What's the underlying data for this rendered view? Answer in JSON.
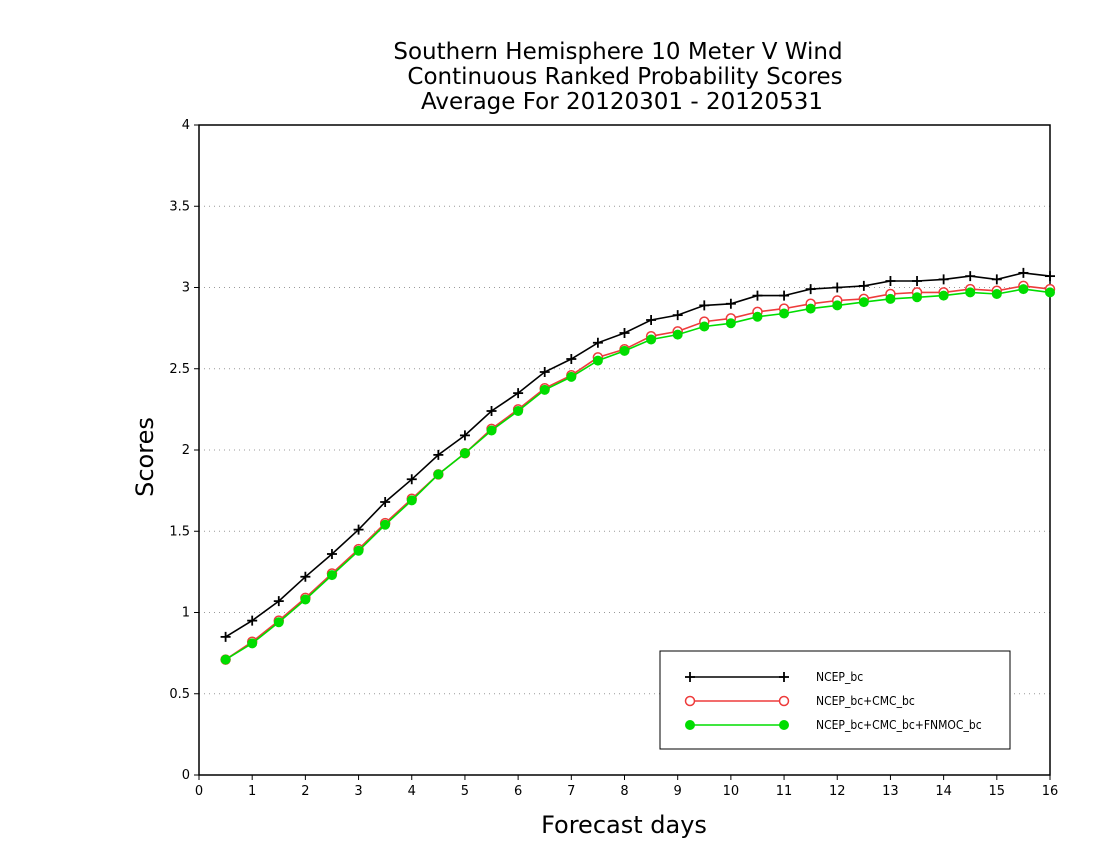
{
  "chart_data": {
    "type": "line",
    "title": [
      "Southern Hemisphere 10 Meter V Wind",
      "Continuous Ranked Probability Scores",
      "Average For 20120301 - 20120531"
    ],
    "xlabel": "Forecast days",
    "ylabel": "Scores",
    "xlim": [
      0,
      16
    ],
    "ylim": [
      0,
      4
    ],
    "xticks": [
      "0",
      "1",
      "2",
      "3",
      "4",
      "5",
      "6",
      "7",
      "8",
      "9",
      "10",
      "11",
      "12",
      "13",
      "14",
      "15",
      "16"
    ],
    "yticks": [
      "0",
      "0.5",
      "1",
      "1.5",
      "2",
      "2.5",
      "3",
      "3.5",
      "4"
    ],
    "grid": "horizontal dotted",
    "legend_position": "bottom-right",
    "x": [
      0.5,
      1,
      1.5,
      2,
      2.5,
      3,
      3.5,
      4,
      4.5,
      5,
      5.5,
      6,
      6.5,
      7,
      7.5,
      8,
      8.5,
      9,
      9.5,
      10,
      10.5,
      11,
      11.5,
      12,
      12.5,
      13,
      13.5,
      14,
      14.5,
      15,
      15.5,
      16
    ],
    "series": [
      {
        "name": "NCEP_bc",
        "color": "#000000",
        "marker": "plus",
        "values": [
          0.85,
          0.95,
          1.07,
          1.22,
          1.36,
          1.51,
          1.68,
          1.82,
          1.97,
          2.09,
          2.24,
          2.35,
          2.48,
          2.56,
          2.66,
          2.72,
          2.8,
          2.83,
          2.89,
          2.9,
          2.95,
          2.95,
          2.99,
          3.0,
          3.01,
          3.04,
          3.04,
          3.05,
          3.07,
          3.05,
          3.09,
          3.07
        ]
      },
      {
        "name": "NCEP_bc+CMC_bc",
        "color": "#ee3b3b",
        "marker": "open-circle",
        "values": [
          0.71,
          0.82,
          0.95,
          1.09,
          1.24,
          1.39,
          1.55,
          1.7,
          1.85,
          1.98,
          2.13,
          2.25,
          2.38,
          2.46,
          2.57,
          2.62,
          2.7,
          2.73,
          2.79,
          2.81,
          2.85,
          2.87,
          2.9,
          2.92,
          2.93,
          2.96,
          2.97,
          2.97,
          2.99,
          2.98,
          3.01,
          2.99
        ]
      },
      {
        "name": "NCEP_bc+CMC_bc+FNMOC_bc",
        "color": "#00dd00",
        "marker": "filled-circle",
        "values": [
          0.71,
          0.81,
          0.94,
          1.08,
          1.23,
          1.38,
          1.54,
          1.69,
          1.85,
          1.98,
          2.12,
          2.24,
          2.37,
          2.45,
          2.55,
          2.61,
          2.68,
          2.71,
          2.76,
          2.78,
          2.82,
          2.84,
          2.87,
          2.89,
          2.91,
          2.93,
          2.94,
          2.95,
          2.97,
          2.96,
          2.99,
          2.97
        ]
      }
    ]
  }
}
